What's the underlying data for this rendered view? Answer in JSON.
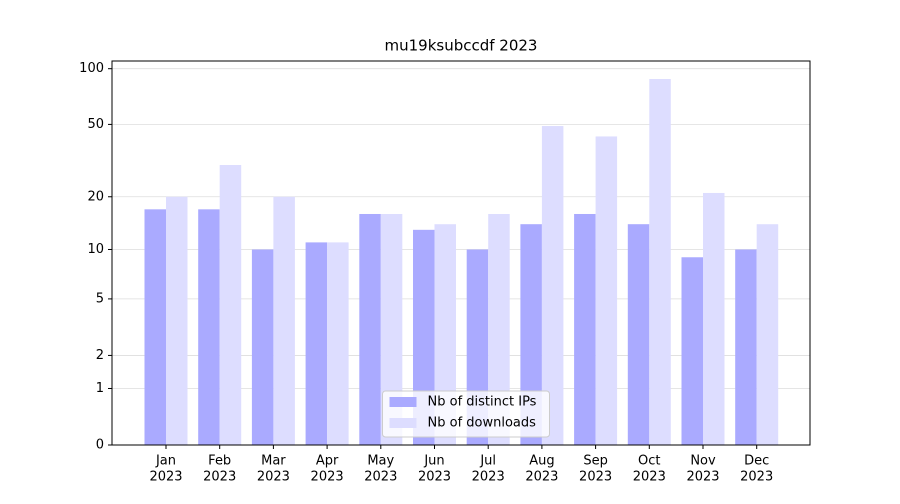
{
  "chart_data": {
    "type": "bar",
    "title": "mu19ksubccdf 2023",
    "categories": [
      [
        "Jan",
        "2023"
      ],
      [
        "Feb",
        "2023"
      ],
      [
        "Mar",
        "2023"
      ],
      [
        "Apr",
        "2023"
      ],
      [
        "May",
        "2023"
      ],
      [
        "Jun",
        "2023"
      ],
      [
        "Jul",
        "2023"
      ],
      [
        "Aug",
        "2023"
      ],
      [
        "Sep",
        "2023"
      ],
      [
        "Oct",
        "2023"
      ],
      [
        "Nov",
        "2023"
      ],
      [
        "Dec",
        "2023"
      ]
    ],
    "series": [
      {
        "name": "Nb of distinct IPs",
        "color": "#aaaaff",
        "values": [
          17,
          17,
          10,
          11,
          16,
          13,
          10,
          14,
          16,
          14,
          9,
          10
        ]
      },
      {
        "name": "Nb of downloads",
        "color": "#ddddff",
        "values": [
          20,
          30,
          20,
          11,
          16,
          14,
          16,
          49,
          43,
          88,
          21,
          14
        ]
      }
    ],
    "yscale": "log1p",
    "ylim": [
      0,
      110
    ],
    "yticks": [
      0,
      1,
      2,
      5,
      10,
      20,
      50,
      100
    ],
    "grid": true,
    "legend": "lower center"
  }
}
